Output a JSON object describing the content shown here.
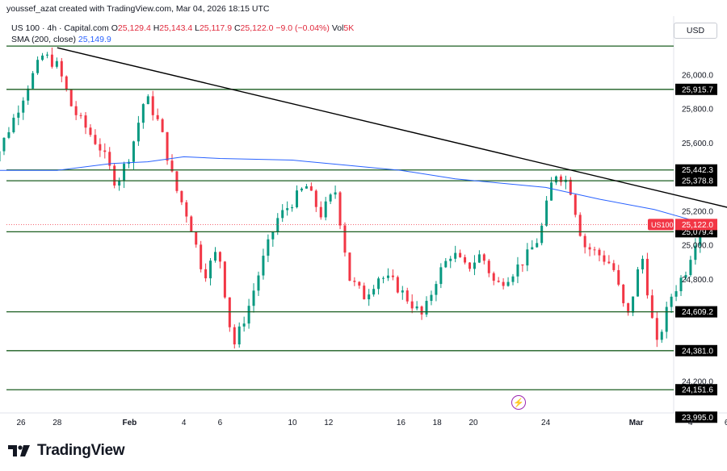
{
  "header": {
    "credit": "youssef_azat created with TradingView.com, Mar 04, 2026 18:15 UTC",
    "symbol": "US 100 · 4h · Capital.com",
    "o_label": "O",
    "o_value": "25,129.4",
    "h_label": "H",
    "h_value": "25,143.4",
    "l_label": "L",
    "l_value": "25,117.9",
    "c_label": "C",
    "c_value": "25,122.0",
    "change": "−9.0 (−0.04%)",
    "vol_label": "Vol",
    "vol_value": "5K",
    "sma_label": "SMA (200, close)",
    "sma_value": "25,149.9",
    "currency": "USD"
  },
  "brand": {
    "name": "TradingView"
  },
  "colors": {
    "up": "#089981",
    "down": "#f23645",
    "sma": "#2962ff",
    "level_line": "#1b5e20",
    "trendline": "#000000",
    "badge": "#f23645"
  },
  "chart_data": {
    "type": "candlestick",
    "timeframe": "4h",
    "ylim": [
      23950,
      26250
    ],
    "y_ticks": [
      "26,000.0",
      "25,800.0",
      "25,600.0",
      "25,200.0",
      "25,000.0",
      "24,800.0",
      "24,200.0"
    ],
    "x_ticks": [
      "26",
      "28",
      "Feb",
      "4",
      "6",
      "10",
      "12",
      "16",
      "18",
      "20",
      "24",
      "Mar",
      "4",
      "6",
      "10",
      "12",
      "16"
    ],
    "x_tick_dates": [
      "2026-01-26",
      "2026-01-28",
      "2026-02-01",
      "2026-02-04",
      "2026-02-06",
      "2026-02-10",
      "2026-02-12",
      "2026-02-16",
      "2026-02-18",
      "2026-02-20",
      "2026-02-24",
      "2026-03-01",
      "2026-03-04",
      "2026-03-06",
      "2026-03-10",
      "2026-03-12",
      "2026-03-16"
    ],
    "horizontal_levels": [
      {
        "value": 26170,
        "label": ""
      },
      {
        "value": 25915.7,
        "label": "25,915.7"
      },
      {
        "value": 25442.3,
        "label": "25,442.3"
      },
      {
        "value": 25378.8,
        "label": "25,378.8"
      },
      {
        "value": 25079.4,
        "label": "25,079.4"
      },
      {
        "value": 24609.2,
        "label": "24,609.2"
      },
      {
        "value": 24381.0,
        "label": "24,381.0"
      },
      {
        "value": 24151.6,
        "label": "24,151.6"
      }
    ],
    "extra_price_labels": [
      "23,995.0"
    ],
    "current_price": {
      "symbol": "US100",
      "value": 25122.0,
      "label": "25,122.0"
    },
    "trendline": {
      "from": {
        "date": "2026-01-28",
        "price": 26160
      },
      "to": {
        "date": "2026-03-18",
        "price": 24920
      }
    },
    "sma_200": [
      {
        "date": "2026-01-24",
        "price": 25440
      },
      {
        "date": "2026-01-28",
        "price": 25440
      },
      {
        "date": "2026-01-31",
        "price": 25480
      },
      {
        "date": "2026-02-02",
        "price": 25490
      },
      {
        "date": "2026-02-04",
        "price": 25520
      },
      {
        "date": "2026-02-06",
        "price": 25510
      },
      {
        "date": "2026-02-10",
        "price": 25500
      },
      {
        "date": "2026-02-13",
        "price": 25470
      },
      {
        "date": "2026-02-16",
        "price": 25440
      },
      {
        "date": "2026-02-19",
        "price": 25390
      },
      {
        "date": "2026-02-24",
        "price": 25340
      },
      {
        "date": "2026-02-27",
        "price": 25270
      },
      {
        "date": "2026-03-02",
        "price": 25210
      },
      {
        "date": "2026-03-04",
        "price": 25150
      }
    ],
    "price_path": [
      {
        "date": "2026-01-24",
        "price": 25450
      },
      {
        "date": "2026-01-25",
        "price": 25560
      },
      {
        "date": "2026-01-26",
        "price": 25750
      },
      {
        "date": "2026-01-27",
        "price": 25950
      },
      {
        "date": "2026-01-28",
        "price": 26120
      },
      {
        "date": "2026-01-29",
        "price": 26050
      },
      {
        "date": "2026-01-29",
        "price": 25800
      },
      {
        "date": "2026-01-30",
        "price": 25680
      },
      {
        "date": "2026-01-31",
        "price": 25560
      },
      {
        "date": "2026-02-01",
        "price": 25360
      },
      {
        "date": "2026-02-01",
        "price": 25550
      },
      {
        "date": "2026-02-02",
        "price": 25880
      },
      {
        "date": "2026-02-03",
        "price": 25700
      },
      {
        "date": "2026-02-03",
        "price": 25350
      },
      {
        "date": "2026-02-04",
        "price": 25150
      },
      {
        "date": "2026-02-05",
        "price": 24820
      },
      {
        "date": "2026-02-05",
        "price": 24980
      },
      {
        "date": "2026-02-06",
        "price": 24400
      },
      {
        "date": "2026-02-07",
        "price": 24620
      },
      {
        "date": "2026-02-08",
        "price": 24900
      },
      {
        "date": "2026-02-09",
        "price": 25150
      },
      {
        "date": "2026-02-10",
        "price": 25250
      },
      {
        "date": "2026-02-11",
        "price": 25350
      },
      {
        "date": "2026-02-12",
        "price": 25180
      },
      {
        "date": "2026-02-13",
        "price": 25320
      },
      {
        "date": "2026-02-13",
        "price": 24800
      },
      {
        "date": "2026-02-14",
        "price": 24700
      },
      {
        "date": "2026-02-15",
        "price": 24820
      },
      {
        "date": "2026-02-16",
        "price": 24780
      },
      {
        "date": "2026-02-17",
        "price": 24680
      },
      {
        "date": "2026-02-18",
        "price": 24580
      },
      {
        "date": "2026-02-19",
        "price": 24820
      },
      {
        "date": "2026-02-20",
        "price": 24960
      },
      {
        "date": "2026-02-21",
        "price": 24860
      },
      {
        "date": "2026-02-22",
        "price": 24950
      },
      {
        "date": "2026-02-23",
        "price": 24760
      },
      {
        "date": "2026-02-24",
        "price": 24830
      },
      {
        "date": "2026-02-25",
        "price": 24920
      },
      {
        "date": "2026-02-26",
        "price": 25050
      },
      {
        "date": "2026-02-27",
        "price": 25430
      },
      {
        "date": "2026-02-28",
        "price": 25370
      },
      {
        "date": "2026-03-01",
        "price": 25000
      },
      {
        "date": "2026-03-01",
        "price": 24950
      },
      {
        "date": "2026-03-02",
        "price": 24880
      },
      {
        "date": "2026-03-03",
        "price": 24560
      },
      {
        "date": "2026-03-03",
        "price": 24950
      },
      {
        "date": "2026-03-04",
        "price": 24400
      },
      {
        "date": "2026-03-04",
        "price": 24700
      },
      {
        "date": "2026-03-04",
        "price": 24850
      },
      {
        "date": "2026-03-04",
        "price": 25122
      }
    ]
  }
}
